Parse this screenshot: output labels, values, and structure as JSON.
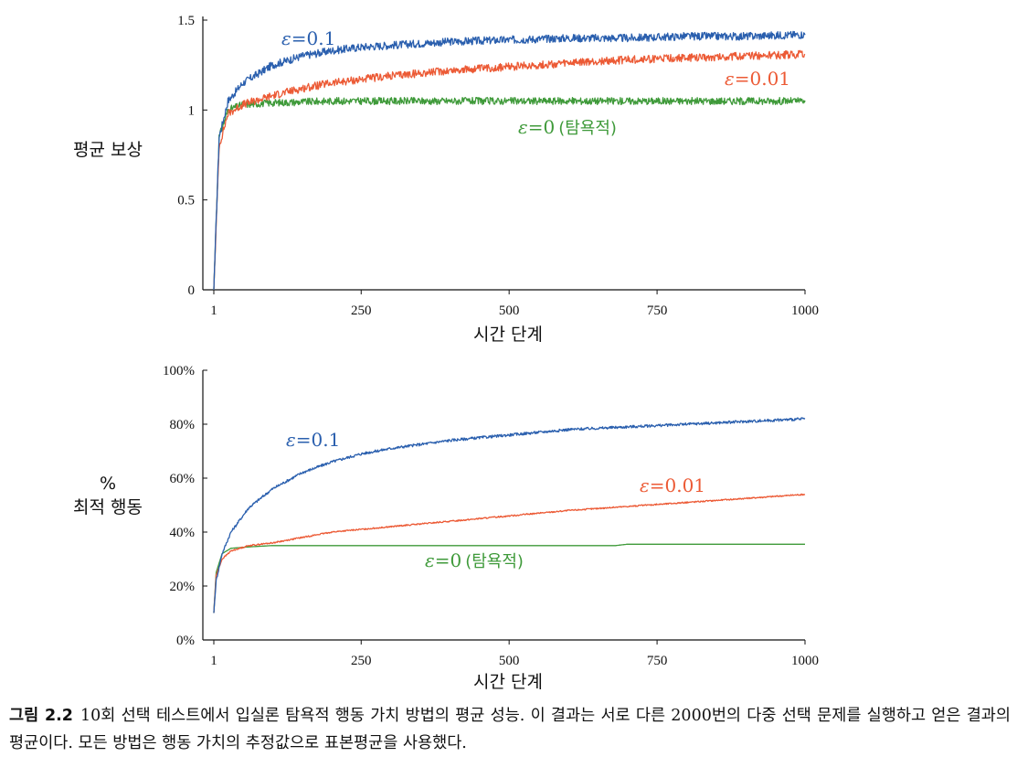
{
  "caption": {
    "label": "그림 2.2",
    "text": "10회 선택 테스트에서 입실론 탐욕적 행동 가치 방법의 평균 성능. 이 결과는 서로 다른 2000번의 다중 선택 문제를 실행하고 얻은 결과의 평균이다. 모든 방법은 행동 가치의 추정값으로 표본평균을 사용했다."
  },
  "colors": {
    "eps_0_1": "#2a5fae",
    "eps_0_01": "#ec5a35",
    "eps_0": "#3f9a3a"
  },
  "chart_data": [
    {
      "type": "line",
      "title": "",
      "xlabel": "시간 단계",
      "ylabel": "평균 보상",
      "xlim": [
        1,
        1000
      ],
      "ylim": [
        0,
        1.5
      ],
      "xticks": [
        "1",
        "250",
        "500",
        "750",
        "1000"
      ],
      "yticks": [
        "0",
        "0.5",
        "1",
        "1.5"
      ],
      "grid": false,
      "legend": "inline",
      "series": [
        {
          "name": "ε = 0.1",
          "color": "#2a5fae",
          "x": [
            1,
            10,
            25,
            50,
            100,
            150,
            200,
            250,
            300,
            400,
            500,
            600,
            700,
            800,
            900,
            1000
          ],
          "y": [
            0.0,
            0.85,
            1.05,
            1.15,
            1.25,
            1.3,
            1.33,
            1.35,
            1.36,
            1.38,
            1.39,
            1.4,
            1.4,
            1.41,
            1.41,
            1.42
          ]
        },
        {
          "name": "ε = 0.01",
          "color": "#ec5a35",
          "x": [
            1,
            10,
            25,
            50,
            100,
            150,
            200,
            250,
            300,
            400,
            500,
            600,
            700,
            800,
            900,
            1000
          ],
          "y": [
            0.0,
            0.8,
            0.98,
            1.03,
            1.08,
            1.12,
            1.15,
            1.17,
            1.19,
            1.22,
            1.24,
            1.26,
            1.28,
            1.29,
            1.3,
            1.31
          ]
        },
        {
          "name": "ε = 0 (탐욕적)",
          "color": "#3f9a3a",
          "x": [
            1,
            10,
            25,
            50,
            100,
            200,
            400,
            600,
            800,
            1000
          ],
          "y": [
            0.0,
            0.85,
            1.0,
            1.03,
            1.04,
            1.05,
            1.05,
            1.05,
            1.05,
            1.05
          ]
        }
      ]
    },
    {
      "type": "line",
      "title": "",
      "xlabel": "시간 단계",
      "ylabel": "%\n최적 행동",
      "xlim": [
        1,
        1000
      ],
      "ylim": [
        0,
        100
      ],
      "xticks": [
        "1",
        "250",
        "500",
        "750",
        "1000"
      ],
      "yticks": [
        "0%",
        "20%",
        "40%",
        "60%",
        "80%",
        "100%"
      ],
      "grid": false,
      "legend": "inline",
      "series": [
        {
          "name": "ε = 0.1",
          "color": "#2a5fae",
          "x": [
            1,
            5,
            15,
            30,
            60,
            100,
            150,
            200,
            250,
            300,
            400,
            500,
            600,
            700,
            800,
            900,
            1000
          ],
          "y": [
            10,
            22,
            32,
            40,
            49,
            56,
            62,
            66,
            69,
            71,
            74,
            76,
            78,
            79,
            80,
            81,
            82
          ]
        },
        {
          "name": "ε = 0.01",
          "color": "#ec5a35",
          "x": [
            1,
            5,
            15,
            30,
            60,
            100,
            150,
            200,
            250,
            300,
            400,
            500,
            600,
            700,
            800,
            900,
            1000
          ],
          "y": [
            10,
            24,
            30,
            33,
            35,
            36,
            38,
            40,
            41,
            42,
            44,
            46,
            48,
            49.5,
            51,
            52.5,
            54
          ]
        },
        {
          "name": "ε = 0 (탐욕적)",
          "color": "#3f9a3a",
          "x": [
            1,
            5,
            15,
            30,
            60,
            100,
            200,
            300,
            400,
            500,
            600,
            680,
            700,
            800,
            900,
            1000
          ],
          "y": [
            10,
            25,
            32,
            34,
            34.5,
            35,
            35,
            35,
            35,
            35,
            35,
            35,
            35.5,
            35.5,
            35.5,
            35.5
          ]
        }
      ]
    }
  ]
}
